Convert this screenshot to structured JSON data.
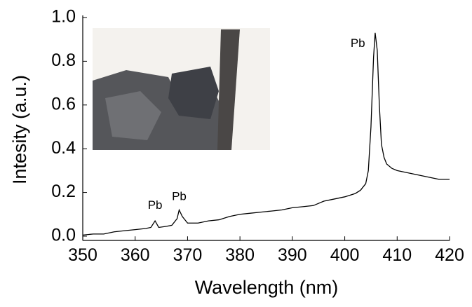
{
  "chart_data": {
    "type": "line",
    "x_label": "Wavelength  (nm)",
    "y_label": "Intesity (a.u.)",
    "x": [
      350,
      352,
      354,
      356,
      358,
      360,
      362,
      363,
      363.8,
      364.5,
      366,
      367,
      368,
      368.4,
      369,
      370,
      372,
      374,
      376,
      378,
      380,
      382,
      384,
      386,
      388,
      390,
      392,
      394,
      396,
      398,
      400,
      402,
      403,
      404,
      404.5,
      405,
      405.5,
      405.8,
      406.2,
      406.6,
      407,
      407.5,
      408,
      409,
      410,
      412,
      414,
      416,
      418,
      420
    ],
    "values": [
      0.005,
      0.01,
      0.01,
      0.02,
      0.025,
      0.03,
      0.035,
      0.04,
      0.07,
      0.04,
      0.045,
      0.05,
      0.08,
      0.12,
      0.09,
      0.06,
      0.06,
      0.07,
      0.075,
      0.09,
      0.1,
      0.105,
      0.11,
      0.115,
      0.12,
      0.13,
      0.135,
      0.14,
      0.16,
      0.17,
      0.18,
      0.195,
      0.21,
      0.24,
      0.3,
      0.5,
      0.82,
      0.93,
      0.85,
      0.6,
      0.42,
      0.36,
      0.33,
      0.31,
      0.3,
      0.29,
      0.28,
      0.27,
      0.26,
      0.26
    ],
    "color": "#000000",
    "xlim": [
      350,
      420
    ],
    "ylim": [
      -0.02,
      1.0
    ],
    "xticks": [
      350,
      360,
      370,
      380,
      390,
      400,
      410,
      420
    ],
    "yticks": [
      {
        "value": 0,
        "label": "0.0"
      },
      0.2,
      0.4,
      0.6,
      0.8,
      {
        "value": 1,
        "label": "1.0"
      }
    ],
    "annotations": [
      {
        "text": "Pb",
        "x": 363.8,
        "y": 0.14
      },
      {
        "text": "Pb",
        "x": 368.4,
        "y": 0.18
      },
      {
        "text": "Pb",
        "x": 402.5,
        "y": 0.88
      }
    ]
  }
}
